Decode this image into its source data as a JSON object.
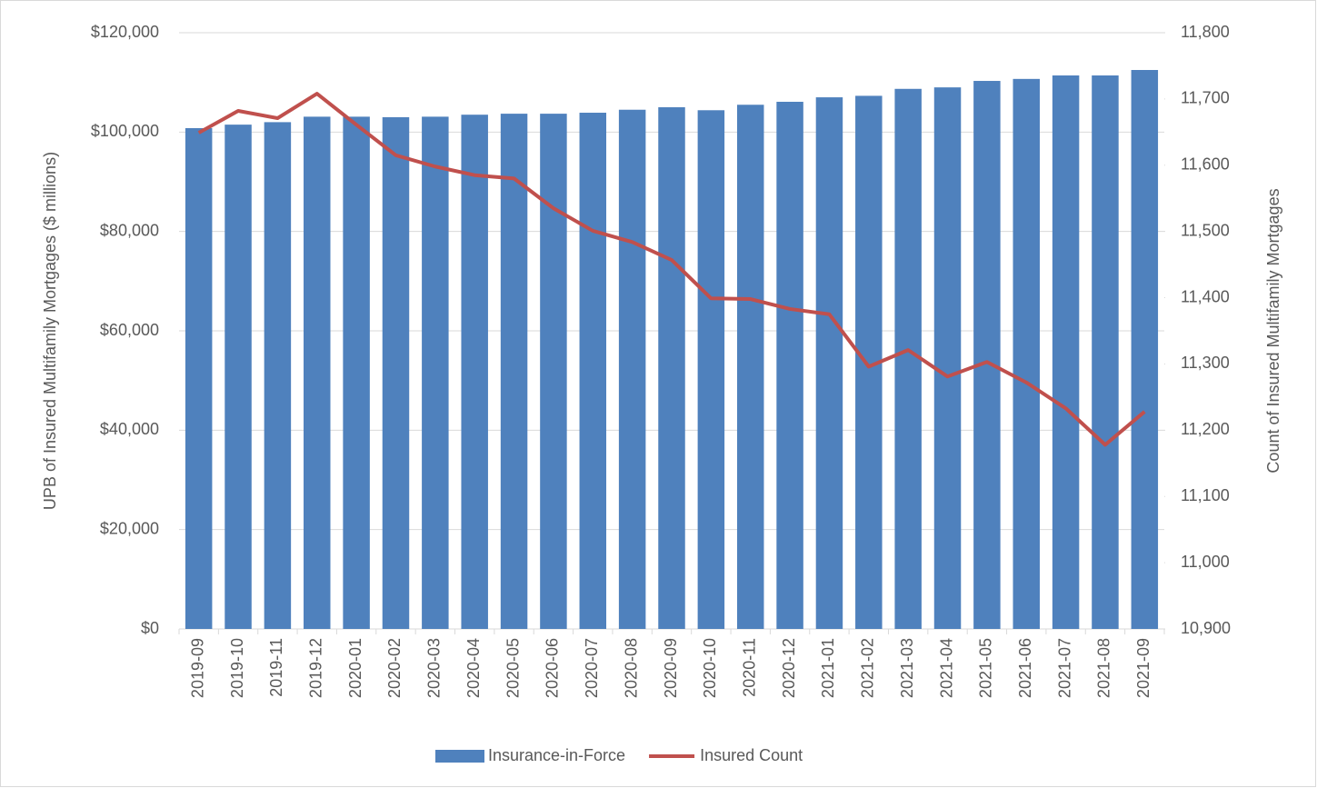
{
  "chart_data": {
    "type": "bar-line",
    "y_label": "UPB of Insured Multifamily Mortgages ($ millions)",
    "y2_label": "Count of Insured Multifamily Mortgages",
    "categories": [
      "2019-09",
      "2019-10",
      "2019-11",
      "2019-12",
      "2020-01",
      "2020-02",
      "2020-03",
      "2020-04",
      "2020-05",
      "2020-06",
      "2020-07",
      "2020-08",
      "2020-09",
      "2020-10",
      "2020-11",
      "2020-12",
      "2021-01",
      "2021-02",
      "2021-03",
      "2021-04",
      "2021-05",
      "2021-06",
      "2021-07",
      "2021-08",
      "2021-09"
    ],
    "series": [
      {
        "name": "Insurance-in-Force",
        "type": "bar",
        "color": "#4f81bd",
        "values": [
          100800,
          101500,
          102000,
          103100,
          103100,
          103000,
          103100,
          103500,
          103700,
          103700,
          103900,
          104500,
          105000,
          104400,
          105500,
          106100,
          107000,
          107300,
          108700,
          109000,
          110300,
          110700,
          111400,
          111400,
          112500
        ]
      },
      {
        "name": "Insured Count",
        "type": "line",
        "axis": "y2",
        "color": "#c0504d",
        "values": [
          11649,
          11682,
          11671,
          11708,
          11661,
          11615,
          11598,
          11585,
          11580,
          11535,
          11501,
          11484,
          11457,
          11399,
          11398,
          11383,
          11375,
          11296,
          11321,
          11281,
          11303,
          11272,
          11233,
          11178,
          11228
        ]
      }
    ],
    "ylim": [
      0,
      120000
    ],
    "yticks": [
      {
        "value": 0,
        "label": "$0"
      },
      {
        "value": 20000,
        "label": "$20,000"
      },
      {
        "value": 40000,
        "label": "$40,000"
      },
      {
        "value": 60000,
        "label": "$60,000"
      },
      {
        "value": 80000,
        "label": "$80,000"
      },
      {
        "value": 100000,
        "label": "$100,000"
      },
      {
        "value": 120000,
        "label": "$120,000"
      }
    ],
    "y2lim": [
      10900,
      11800
    ],
    "y2ticks": [
      {
        "value": 10900,
        "label": "10,900"
      },
      {
        "value": 11000,
        "label": "11,000"
      },
      {
        "value": 11100,
        "label": "11,100"
      },
      {
        "value": 11200,
        "label": "11,200"
      },
      {
        "value": 11300,
        "label": "11,300"
      },
      {
        "value": 11400,
        "label": "11,400"
      },
      {
        "value": 11500,
        "label": "11,500"
      },
      {
        "value": 11600,
        "label": "11,600"
      },
      {
        "value": 11700,
        "label": "11,700"
      },
      {
        "value": 11800,
        "label": "11,800"
      }
    ],
    "grid": true,
    "legend": "bottom"
  }
}
